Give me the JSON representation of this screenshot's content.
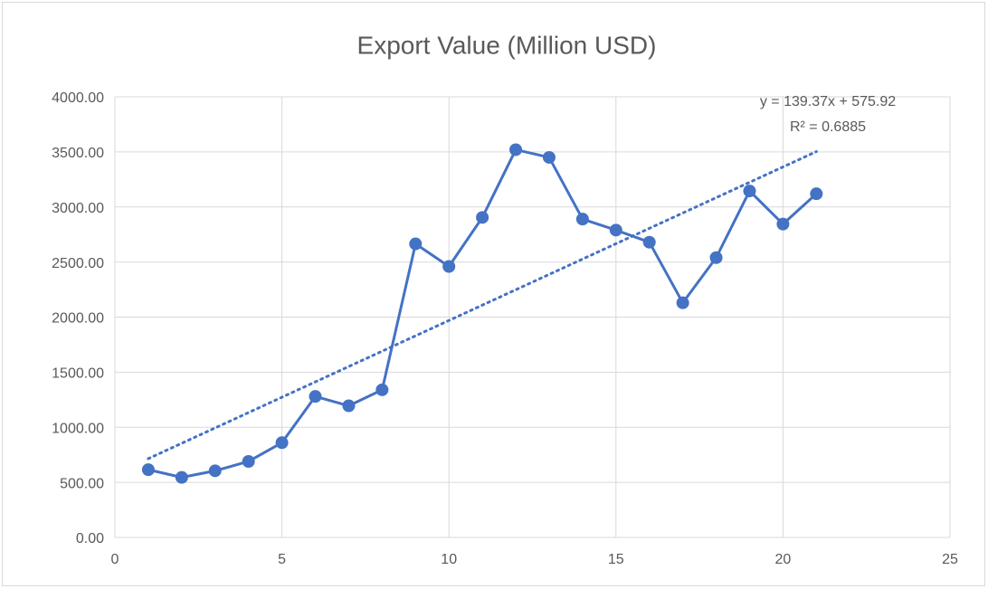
{
  "chart_data": {
    "type": "scatter",
    "title": "Export Value (Million USD)",
    "x": [
      1,
      2,
      3,
      4,
      5,
      6,
      7,
      8,
      9,
      10,
      11,
      12,
      13,
      14,
      15,
      16,
      17,
      18,
      19,
      20,
      21
    ],
    "series": [
      {
        "name": "Export Value",
        "color": "#4472c4",
        "values": [
          615,
          545,
          605,
          690,
          860,
          1280,
          1195,
          1340,
          2665,
          2460,
          2905,
          3520,
          3450,
          2890,
          2790,
          2680,
          2130,
          2540,
          3145,
          2845,
          3120
        ]
      }
    ],
    "trendline": {
      "slope": 139.37,
      "intercept": 575.92,
      "equation": "y = 139.37x + 575.92",
      "r2": "R² = 0.6885"
    },
    "xlim": [
      0,
      25
    ],
    "xticks": [
      0,
      5,
      10,
      15,
      20,
      25
    ],
    "ylim": [
      0,
      4000
    ],
    "yticks": [
      {
        "value": 0,
        "label": "0.00"
      },
      {
        "value": 500,
        "label": "500.00"
      },
      {
        "value": 1000,
        "label": "1000.00"
      },
      {
        "value": 1500,
        "label": "1500.00"
      },
      {
        "value": 2000,
        "label": "2000.00"
      },
      {
        "value": 2500,
        "label": "2500.00"
      },
      {
        "value": 3000,
        "label": "3000.00"
      },
      {
        "value": 3500,
        "label": "3500.00"
      },
      {
        "value": 4000,
        "label": "4000.00"
      }
    ],
    "grid": true
  }
}
